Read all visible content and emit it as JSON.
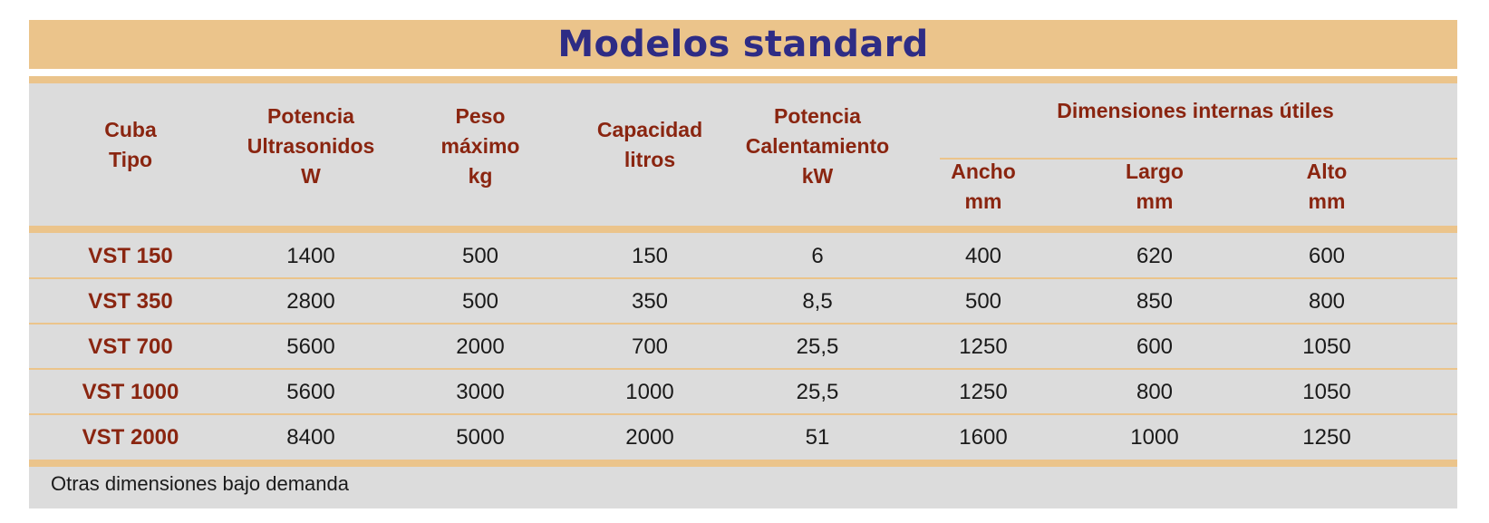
{
  "title": "Modelos standard",
  "group_header": "Dimensiones internas útiles",
  "columns": [
    {
      "line1": "Cuba",
      "line2": "Tipo",
      "line3": ""
    },
    {
      "line1": "Potencia",
      "line2": "Ultrasonidos",
      "line3": "W"
    },
    {
      "line1": "Peso",
      "line2": "máximo",
      "line3": "kg"
    },
    {
      "line1": "Capacidad",
      "line2": "litros",
      "line3": ""
    },
    {
      "line1": "Potencia",
      "line2": "Calentamiento",
      "line3": "kW"
    },
    {
      "line1": "Ancho",
      "line2": "mm",
      "line3": ""
    },
    {
      "line1": "Largo",
      "line2": "mm",
      "line3": ""
    },
    {
      "line1": "Alto",
      "line2": "mm",
      "line3": ""
    }
  ],
  "rows": [
    [
      "VST 150",
      "1400",
      "500",
      "150",
      "6",
      "400",
      "620",
      "600"
    ],
    [
      "VST 350",
      "2800",
      "500",
      "350",
      "8,5",
      "500",
      "850",
      "800"
    ],
    [
      "VST 700",
      "5600",
      "2000",
      "700",
      "25,5",
      "1250",
      "600",
      "1050"
    ],
    [
      "VST 1000",
      "5600",
      "3000",
      "1000",
      "25,5",
      "1250",
      "800",
      "1050"
    ],
    [
      "VST 2000",
      "8400",
      "5000",
      "2000",
      "51",
      "1600",
      "1000",
      "1250"
    ]
  ],
  "footer": "Otras dimensiones bajo demanda",
  "colors": {
    "band": "#ebc48b",
    "title": "#2e2c85",
    "header_text": "#8a2510",
    "table_bg": "#dcdcdc"
  }
}
